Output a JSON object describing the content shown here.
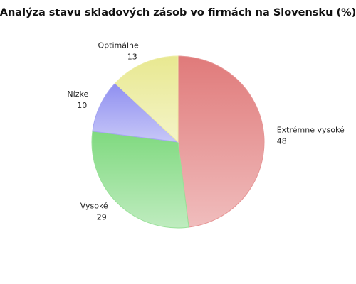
{
  "chart_data": {
    "type": "pie",
    "title": "Analýza stavu skladových zásob vo firmách na Slovensku (%)",
    "categories": [
      "Extrémne vysoké",
      "Vysoké",
      "Nízke",
      "Optimálne"
    ],
    "values": [
      48,
      29,
      10,
      13
    ],
    "colors": [
      "#e07a7a",
      "#7fd97f",
      "#8f8ff0",
      "#e8e890"
    ]
  }
}
